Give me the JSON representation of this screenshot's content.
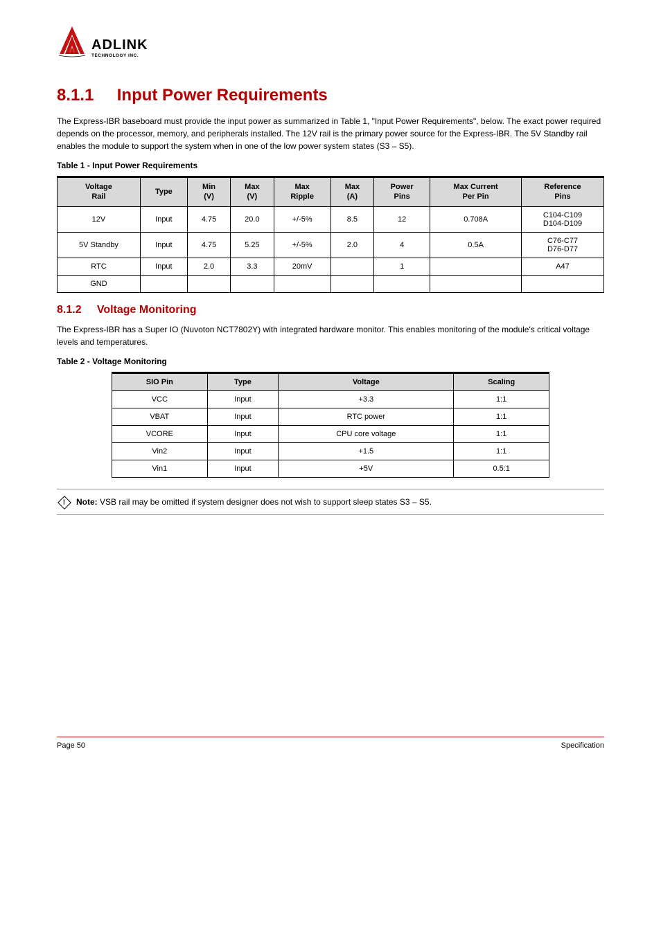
{
  "logo": {
    "main": "ADLINK",
    "sub": "TECHNOLOGY INC."
  },
  "section": {
    "number": "8.1.1",
    "title": "Input Power Requirements"
  },
  "intro_text": "The Express-IBR baseboard must provide the input power as summarized in Table 1, \"Input Power Requirements\", below. The exact power required depends on the processor, memory, and peripherals installed. The 12V rail is the primary power source for the Express-IBR. The 5V Standby rail enables the module to support the system when in one of the low power system states (S3 – S5).",
  "table1": {
    "caption": "Table 1 - Input Power Requirements",
    "headers": [
      "Voltage\nRail",
      "Type",
      "Min\n(V)",
      "Max\n(V)",
      "Max\nRipple",
      "Max\n(A)",
      "Power\nPins",
      "Max Current\nPer Pin",
      "Reference\nPins"
    ],
    "rows": [
      [
        "12V",
        "Input",
        "4.75",
        "20.0",
        "+/-5%",
        "8.5",
        "12",
        "0.708A",
        "C104-C109\nD104-D109"
      ],
      [
        "5V Standby",
        "Input",
        "4.75",
        "5.25",
        "+/-5%",
        "2.0",
        "4",
        "0.5A",
        "C76-C77\nD76-D77"
      ],
      [
        "RTC",
        "Input",
        "2.0",
        "3.3",
        "20mV",
        "",
        "1",
        "",
        "A47"
      ],
      [
        "GND",
        "",
        "",
        "",
        "",
        "",
        "",
        "",
        ""
      ]
    ]
  },
  "subsection": {
    "number": "8.1.2",
    "title": "Voltage Monitoring"
  },
  "sub_text": "The Express-IBR has a Super IO (Nuvoton NCT7802Y) with integrated hardware monitor. This enables monitoring of the module's critical voltage levels and temperatures.",
  "table2": {
    "caption": "Table 2 - Voltage Monitoring",
    "headers": [
      "SIO Pin",
      "Type",
      "Voltage",
      "Scaling"
    ],
    "rows": [
      [
        "VCC",
        "Input",
        "+3.3",
        "1:1"
      ],
      [
        "VBAT",
        "Input",
        "RTC power",
        "1:1"
      ],
      [
        "VCORE",
        "Input",
        "CPU core voltage",
        "1:1"
      ],
      [
        "Vin2",
        "Input",
        "+1.5",
        "1:1"
      ],
      [
        "Vin1",
        "Input",
        "+5V",
        "0.5:1"
      ]
    ]
  },
  "note": {
    "label": "Note:",
    "text": "VSB rail may be omitted if system designer does not wish to support sleep states S3 – S5."
  },
  "footer": {
    "left": "Page 50",
    "right": "Specification"
  }
}
